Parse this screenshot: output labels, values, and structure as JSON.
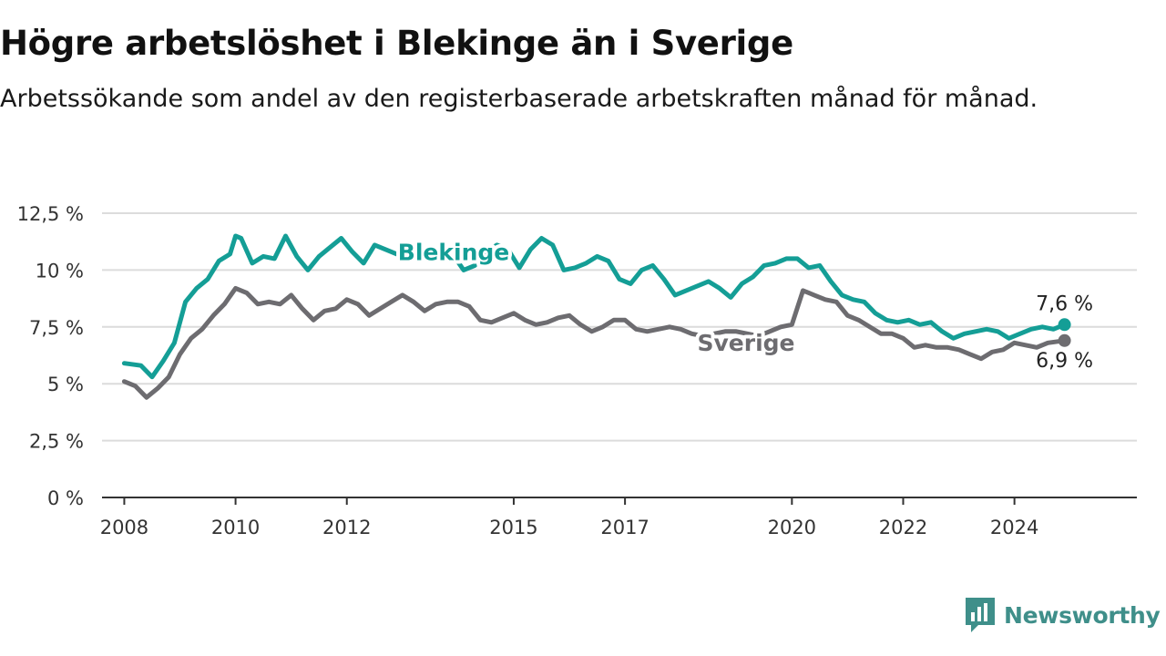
{
  "title": "Högre arbetslöshet i Blekinge än i Sverige",
  "subtitle": "Arbetssökande som andel av den registerbaserade arbetskraften månad för månad.",
  "brand": "Newsworthy",
  "colors": {
    "blekinge": "#149e96",
    "sverige": "#6d6c70",
    "grid": "#dcdcdc",
    "axis": "#333333",
    "brand": "#3f8f8a"
  },
  "chart_data": {
    "type": "line",
    "title": "Högre arbetslöshet i Blekinge än i Sverige",
    "subtitle": "Arbetssökande som andel av den registerbaserade arbetskraften månad för månad.",
    "xlabel": "",
    "ylabel": "",
    "ylim": [
      0,
      12.5
    ],
    "yticks": [
      0,
      2.5,
      5,
      7.5,
      10,
      12.5
    ],
    "ytick_labels": [
      "0 %",
      "2,5 %",
      "5 %",
      "7,5 %",
      "10 %",
      "12,5 %"
    ],
    "xticks": [
      2008,
      2010,
      2012,
      2015,
      2017,
      2020,
      2022,
      2024
    ],
    "xtick_labels": [
      "2008",
      "2010",
      "2012",
      "2015",
      "2017",
      "2020",
      "2022",
      "2024"
    ],
    "grid": true,
    "series": [
      {
        "name": "Blekinge",
        "color": "#149e96",
        "end_label": "7,6 %",
        "x": [
          2008.0,
          2008.3,
          2008.5,
          2008.7,
          2008.9,
          2009.1,
          2009.3,
          2009.5,
          2009.7,
          2009.9,
          2010.0,
          2010.1,
          2010.3,
          2010.5,
          2010.7,
          2010.9,
          2011.1,
          2011.3,
          2011.5,
          2011.7,
          2011.9,
          2012.1,
          2012.3,
          2012.5,
          2012.7,
          2012.9,
          2013.1,
          2013.3,
          2013.5,
          2013.7,
          2013.9,
          2014.1,
          2014.3,
          2014.5,
          2014.7,
          2014.9,
          2015.1,
          2015.3,
          2015.5,
          2015.7,
          2015.9,
          2016.1,
          2016.3,
          2016.5,
          2016.7,
          2016.9,
          2017.1,
          2017.3,
          2017.5,
          2017.7,
          2017.9,
          2018.1,
          2018.3,
          2018.5,
          2018.7,
          2018.9,
          2019.1,
          2019.3,
          2019.5,
          2019.7,
          2019.9,
          2020.1,
          2020.3,
          2020.5,
          2020.7,
          2020.9,
          2021.1,
          2021.3,
          2021.5,
          2021.7,
          2021.9,
          2022.1,
          2022.3,
          2022.5,
          2022.7,
          2022.9,
          2023.1,
          2023.3,
          2023.5,
          2023.7,
          2023.9,
          2024.1,
          2024.3,
          2024.5,
          2024.7,
          2024.9
        ],
        "values": [
          5.9,
          5.8,
          5.3,
          6.0,
          6.8,
          8.6,
          9.2,
          9.6,
          10.4,
          10.7,
          11.5,
          11.4,
          10.3,
          10.6,
          10.5,
          11.5,
          10.6,
          10.0,
          10.6,
          11.0,
          11.4,
          10.8,
          10.3,
          11.1,
          10.9,
          10.7,
          10.7,
          10.8,
          10.9,
          10.8,
          10.7,
          10.0,
          10.2,
          10.8,
          11.1,
          10.9,
          10.1,
          10.9,
          11.4,
          11.1,
          10.0,
          10.1,
          10.3,
          10.6,
          10.4,
          9.6,
          9.4,
          10.0,
          10.2,
          9.6,
          8.9,
          9.1,
          9.3,
          9.5,
          9.2,
          8.8,
          9.4,
          9.7,
          10.2,
          10.3,
          10.5,
          10.5,
          10.1,
          10.2,
          9.5,
          8.9,
          8.7,
          8.6,
          8.1,
          7.8,
          7.7,
          7.8,
          7.6,
          7.7,
          7.3,
          7.0,
          7.2,
          7.3,
          7.4,
          7.3,
          7.0,
          7.2,
          7.4,
          7.5,
          7.4,
          7.6
        ]
      },
      {
        "name": "Sverige",
        "color": "#6d6c70",
        "end_label": "6,9 %",
        "x": [
          2008.0,
          2008.2,
          2008.4,
          2008.6,
          2008.8,
          2009.0,
          2009.2,
          2009.4,
          2009.6,
          2009.8,
          2010.0,
          2010.2,
          2010.4,
          2010.6,
          2010.8,
          2011.0,
          2011.2,
          2011.4,
          2011.6,
          2011.8,
          2012.0,
          2012.2,
          2012.4,
          2012.6,
          2012.8,
          2013.0,
          2013.2,
          2013.4,
          2013.6,
          2013.8,
          2014.0,
          2014.2,
          2014.4,
          2014.6,
          2014.8,
          2015.0,
          2015.2,
          2015.4,
          2015.6,
          2015.8,
          2016.0,
          2016.2,
          2016.4,
          2016.6,
          2016.8,
          2017.0,
          2017.2,
          2017.4,
          2017.6,
          2017.8,
          2018.0,
          2018.2,
          2018.4,
          2018.6,
          2018.8,
          2019.0,
          2019.2,
          2019.4,
          2019.6,
          2019.8,
          2020.0,
          2020.2,
          2020.4,
          2020.6,
          2020.8,
          2021.0,
          2021.2,
          2021.4,
          2021.6,
          2021.8,
          2022.0,
          2022.2,
          2022.4,
          2022.6,
          2022.8,
          2023.0,
          2023.2,
          2023.4,
          2023.6,
          2023.8,
          2024.0,
          2024.2,
          2024.4,
          2024.6,
          2024.9
        ],
        "values": [
          5.1,
          4.9,
          4.4,
          4.8,
          5.3,
          6.3,
          7.0,
          7.4,
          8.0,
          8.5,
          9.2,
          9.0,
          8.5,
          8.6,
          8.5,
          8.9,
          8.3,
          7.8,
          8.2,
          8.3,
          8.7,
          8.5,
          8.0,
          8.3,
          8.6,
          8.9,
          8.6,
          8.2,
          8.5,
          8.6,
          8.6,
          8.4,
          7.8,
          7.7,
          7.9,
          8.1,
          7.8,
          7.6,
          7.7,
          7.9,
          8.0,
          7.6,
          7.3,
          7.5,
          7.8,
          7.8,
          7.4,
          7.3,
          7.4,
          7.5,
          7.4,
          7.2,
          7.1,
          7.2,
          7.3,
          7.3,
          7.2,
          7.1,
          7.3,
          7.5,
          7.6,
          9.1,
          8.9,
          8.7,
          8.6,
          8.0,
          7.8,
          7.5,
          7.2,
          7.2,
          7.0,
          6.6,
          6.7,
          6.6,
          6.6,
          6.5,
          6.3,
          6.1,
          6.4,
          6.5,
          6.8,
          6.7,
          6.6,
          6.8,
          6.9
        ]
      }
    ]
  }
}
